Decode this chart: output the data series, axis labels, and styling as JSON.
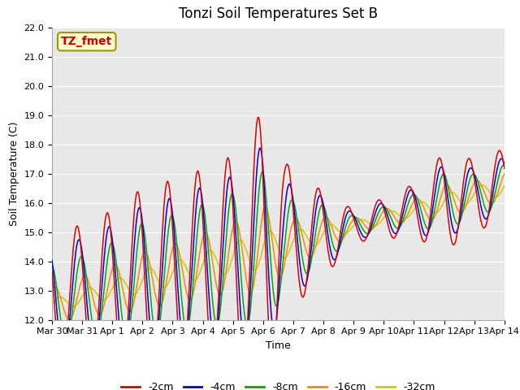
{
  "title": "Tonzi Soil Temperatures Set B",
  "xlabel": "Time",
  "ylabel": "Soil Temperature (C)",
  "ylim": [
    12.0,
    22.0
  ],
  "yticks": [
    12.0,
    13.0,
    14.0,
    15.0,
    16.0,
    17.0,
    18.0,
    19.0,
    20.0,
    21.0,
    22.0
  ],
  "xtick_labels": [
    "Mar 30",
    "Mar 31",
    "Apr 1",
    "Apr 2",
    "Apr 3",
    "Apr 4",
    "Apr 5",
    "Apr 6",
    "Apr 7",
    "Apr 8",
    "Apr 9",
    "Apr 10",
    "Apr 11",
    "Apr 12",
    "Apr 13",
    "Apr 14"
  ],
  "series_colors": [
    "#dd0000",
    "#0000dd",
    "#00aa00",
    "#ff8800",
    "#cccc00"
  ],
  "series_labels": [
    "-2cm",
    "-4cm",
    "-8cm",
    "-16cm",
    "-32cm"
  ],
  "annotation_text": "TZ_fmet",
  "annotation_color": "#cc0000",
  "annotation_bg": "#ffffcc",
  "plot_bg": "#e8e8e8",
  "fig_bg": "#ffffff",
  "grid_color": "#ffffff",
  "title_fontsize": 12,
  "axis_label_fontsize": 9,
  "tick_fontsize": 8,
  "legend_fontsize": 9
}
